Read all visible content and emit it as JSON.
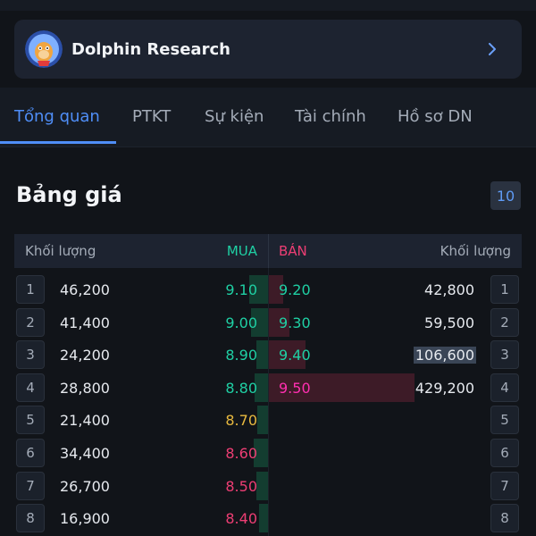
{
  "banner": {
    "title": "Dolphin Research"
  },
  "tabs": [
    {
      "label": "Tổng quan",
      "active": true
    },
    {
      "label": "PTKT",
      "active": false
    },
    {
      "label": "Sự kiện",
      "active": false
    },
    {
      "label": "Tài chính",
      "active": false
    },
    {
      "label": "Hồ sơ DN",
      "active": false
    }
  ],
  "order_book": {
    "title": "Bảng giá",
    "depth_badge": "10",
    "headers": {
      "bid_volume": "Khối lượng",
      "bid": "MUA",
      "ask": "BÁN",
      "ask_volume": "Khối lượng"
    },
    "rows": [
      {
        "index": "1",
        "bid_volume": "46,200",
        "bid_price": "9.10",
        "bid_color": "green",
        "bid_depth": 0.11,
        "ask_price": "9.20",
        "ask_color": "green",
        "ask_volume": "42,800",
        "ask_depth": 0.1,
        "ask_volume_highlight": false
      },
      {
        "index": "2",
        "bid_volume": "41,400",
        "bid_price": "9.00",
        "bid_color": "green",
        "bid_depth": 0.1,
        "ask_price": "9.30",
        "ask_color": "green",
        "ask_volume": "59,500",
        "ask_depth": 0.14,
        "ask_volume_highlight": false
      },
      {
        "index": "3",
        "bid_volume": "24,200",
        "bid_price": "8.90",
        "bid_color": "green",
        "bid_depth": 0.06,
        "ask_price": "9.40",
        "ask_color": "green",
        "ask_volume": "106,600",
        "ask_depth": 0.25,
        "ask_volume_highlight": true
      },
      {
        "index": "4",
        "bid_volume": "28,800",
        "bid_price": "8.80",
        "bid_color": "green",
        "bid_depth": 0.07,
        "ask_price": "9.50",
        "ask_color": "magenta",
        "ask_volume": "429,200",
        "ask_depth": 1.0,
        "ask_volume_highlight": false
      },
      {
        "index": "5",
        "bid_volume": "21,400",
        "bid_price": "8.70",
        "bid_color": "yellow",
        "bid_depth": 0.05
      },
      {
        "index": "6",
        "bid_volume": "34,400",
        "bid_price": "8.60",
        "bid_color": "red",
        "bid_depth": 0.08
      },
      {
        "index": "7",
        "bid_volume": "26,700",
        "bid_price": "8.50",
        "bid_color": "red",
        "bid_depth": 0.06
      },
      {
        "index": "8",
        "bid_volume": "16,900",
        "bid_price": "8.40",
        "bid_color": "red",
        "bid_depth": 0.04
      }
    ]
  },
  "colors": {
    "accent": "#4f8ef7",
    "green": "#1fd0a4",
    "yellow": "#e8b93f",
    "red": "#ee3e74",
    "magenta": "#ff2fb0"
  }
}
